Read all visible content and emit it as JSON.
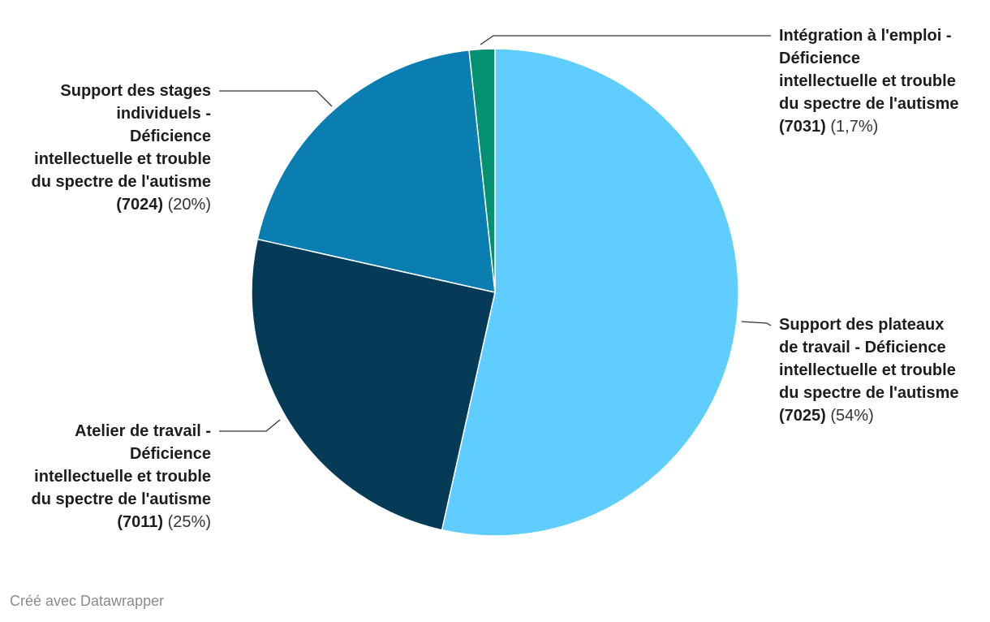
{
  "chart_data": {
    "type": "pie",
    "slices": [
      {
        "label": "Support des plateaux de travail - Déficience intellectuelle et trouble du spectre de l'autisme",
        "code": "(7025)",
        "display": "(54%)",
        "value": 53.5,
        "color": "#5fcdff"
      },
      {
        "label": "Atelier de travail - Déficience intellectuelle et trouble du spectre de l'autisme",
        "code": "(7011)",
        "display": "(25%)",
        "value": 25.0,
        "color": "#053b56"
      },
      {
        "label": "Support des stages individuels - Déficience intellectuelle et trouble du spectre de l'autisme",
        "code": "(7024)",
        "display": "(20%)",
        "value": 19.8,
        "color": "#0b7eb1"
      },
      {
        "label": "Intégration à l'emploi - Déficience intellectuelle et trouble du spectre de l'autisme",
        "code": "(7031)",
        "display": "(1,7%)",
        "value": 1.7,
        "color": "#049172"
      }
    ]
  },
  "labels": {
    "plateaux": {
      "text": "Support des plateaux\nde travail - Déficience\nintellectuelle et trouble\ndu spectre de l'autisme\n",
      "code": "(7025)",
      "pct": "(54%)"
    },
    "atelier": {
      "text": "Atelier de travail -\nDéficience\nintellectuelle et trouble\ndu spectre de l'autisme\n",
      "code": "(7011)",
      "pct": "(25%)"
    },
    "stages": {
      "text": "Support des stages\nindividuels -\nDéficience\nintellectuelle et trouble\ndu spectre de l'autisme\n",
      "code": "(7024)",
      "pct": "(20%)"
    },
    "integration": {
      "text": "Intégration à l'emploi -\nDéficience\nintellectuelle et trouble\ndu spectre de l'autisme\n",
      "code": "(7031)",
      "pct": "(1,7%)"
    }
  },
  "footer": "Créé avec Datawrapper"
}
